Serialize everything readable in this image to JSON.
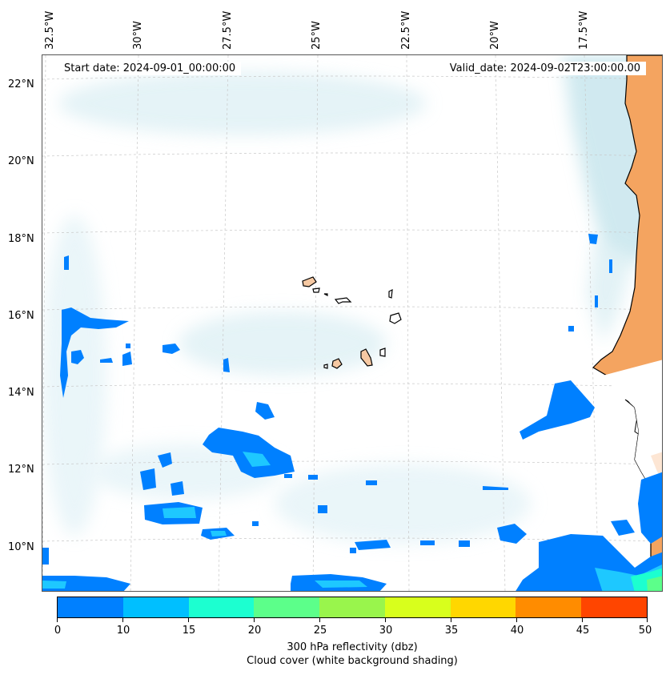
{
  "map": {
    "start_date": "Start date: 2024-09-01_00:00:00",
    "valid_date": "Valid_date: 2024-09-02T23:00:00.00",
    "longitude_labels": [
      "32.5°W",
      "30°W",
      "27.5°W",
      "25°W",
      "22.5°W",
      "20°W",
      "17.5°W"
    ],
    "latitude_labels": [
      "22°N",
      "20°N",
      "18°N",
      "16°N",
      "14°N",
      "12°N",
      "10°N"
    ],
    "land_color": "#f4a460",
    "cloud_color": "#a9d8e3",
    "reflectivity_low_color": "#0080ff"
  },
  "colorbar": {
    "ticks": [
      "0",
      "10",
      "15",
      "20",
      "25",
      "30",
      "35",
      "40",
      "45",
      "50"
    ],
    "colors": [
      "#0080ff",
      "#00bfff",
      "#1cffd0",
      "#5cff8a",
      "#99f54c",
      "#d8ff1c",
      "#ffd700",
      "#ff8c00",
      "#ff4500"
    ],
    "label": "300 hPa reflectivity (dbz)",
    "sublabel": "Cloud cover (white background shading)"
  }
}
